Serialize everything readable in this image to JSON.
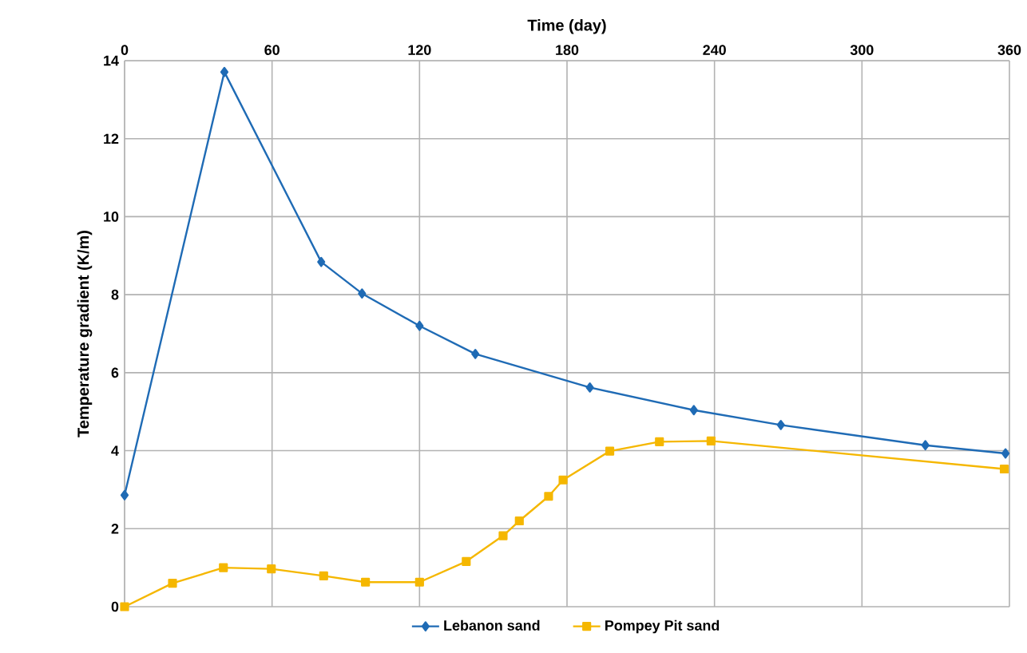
{
  "chart_data": {
    "type": "line",
    "xlabel": "Time (day)",
    "ylabel": "Temperature gradient (K/m)",
    "xlim": [
      0,
      360
    ],
    "xticks": [
      0,
      60,
      120,
      180,
      240,
      300,
      360
    ],
    "ylim": [
      0,
      14
    ],
    "yticks": [
      0,
      2,
      4,
      6,
      8,
      10,
      12,
      14
    ],
    "grid": true,
    "legend": "bottom",
    "series": [
      {
        "name": "Lebanon sand",
        "color": "#1f6bb5",
        "marker": "diamond",
        "x": [
          0,
          40.6,
          80,
          96.6,
          120,
          142.7,
          189.3,
          231.6,
          267,
          325.8,
          358.4
        ],
        "values": [
          2.86,
          13.71,
          8.84,
          8.03,
          7.2,
          6.48,
          5.62,
          5.04,
          4.66,
          4.14,
          3.93
        ]
      },
      {
        "name": "Pompey Pit sand",
        "color": "#f5b700",
        "marker": "square",
        "x": [
          0,
          19.5,
          40.2,
          59.7,
          81,
          98,
          120,
          139,
          154,
          160.6,
          172.5,
          178.4,
          197.4,
          217.6,
          238.6,
          357.9
        ],
        "values": [
          0,
          0.6,
          1.0,
          0.97,
          0.79,
          0.63,
          0.63,
          1.16,
          1.82,
          2.2,
          2.83,
          3.25,
          3.99,
          4.23,
          4.25,
          3.53
        ]
      }
    ]
  }
}
